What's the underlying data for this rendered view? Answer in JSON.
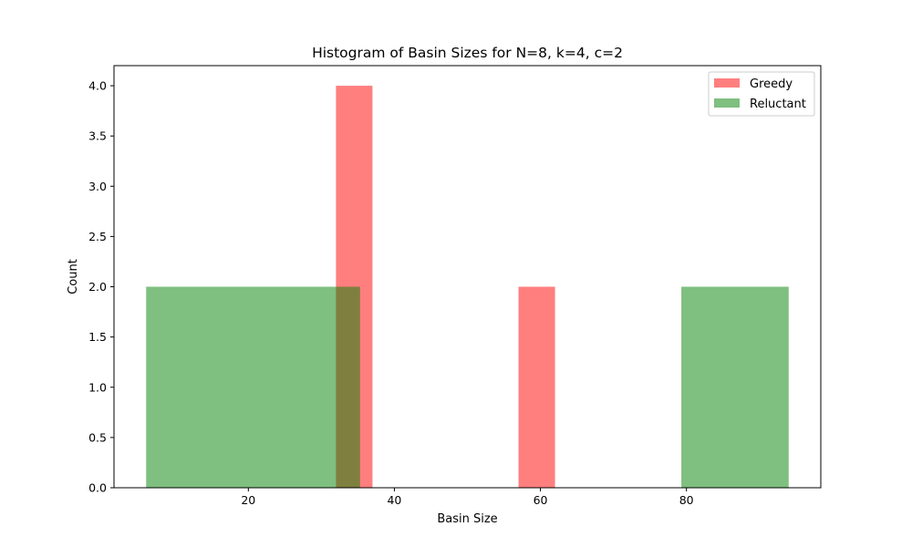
{
  "chart_data": {
    "type": "bar",
    "title": "Histogram of Basin Sizes for N=8, k=4, c=2",
    "xlabel": "Basin Size",
    "ylabel": "Count",
    "xlim": [
      1.6,
      98.4
    ],
    "ylim": [
      0,
      4.2
    ],
    "xticks": [
      20,
      40,
      60,
      80
    ],
    "yticks": [
      "0.0",
      "0.5",
      "1.0",
      "1.5",
      "2.0",
      "2.5",
      "3.0",
      "3.5",
      "4.0"
    ],
    "legend_position": "top-right",
    "series": [
      {
        "name": "Greedy",
        "color": "#ff0000",
        "opacity": 0.5,
        "bins": [
          {
            "x0": 32,
            "x1": 37,
            "count": 4
          },
          {
            "x0": 57,
            "x1": 62,
            "count": 2
          }
        ]
      },
      {
        "name": "Reluctant",
        "color": "#008000",
        "opacity": 0.5,
        "bins": [
          {
            "x0": 6,
            "x1": 35.3,
            "count": 2
          },
          {
            "x0": 79.3,
            "x1": 94,
            "count": 2
          }
        ]
      }
    ]
  }
}
